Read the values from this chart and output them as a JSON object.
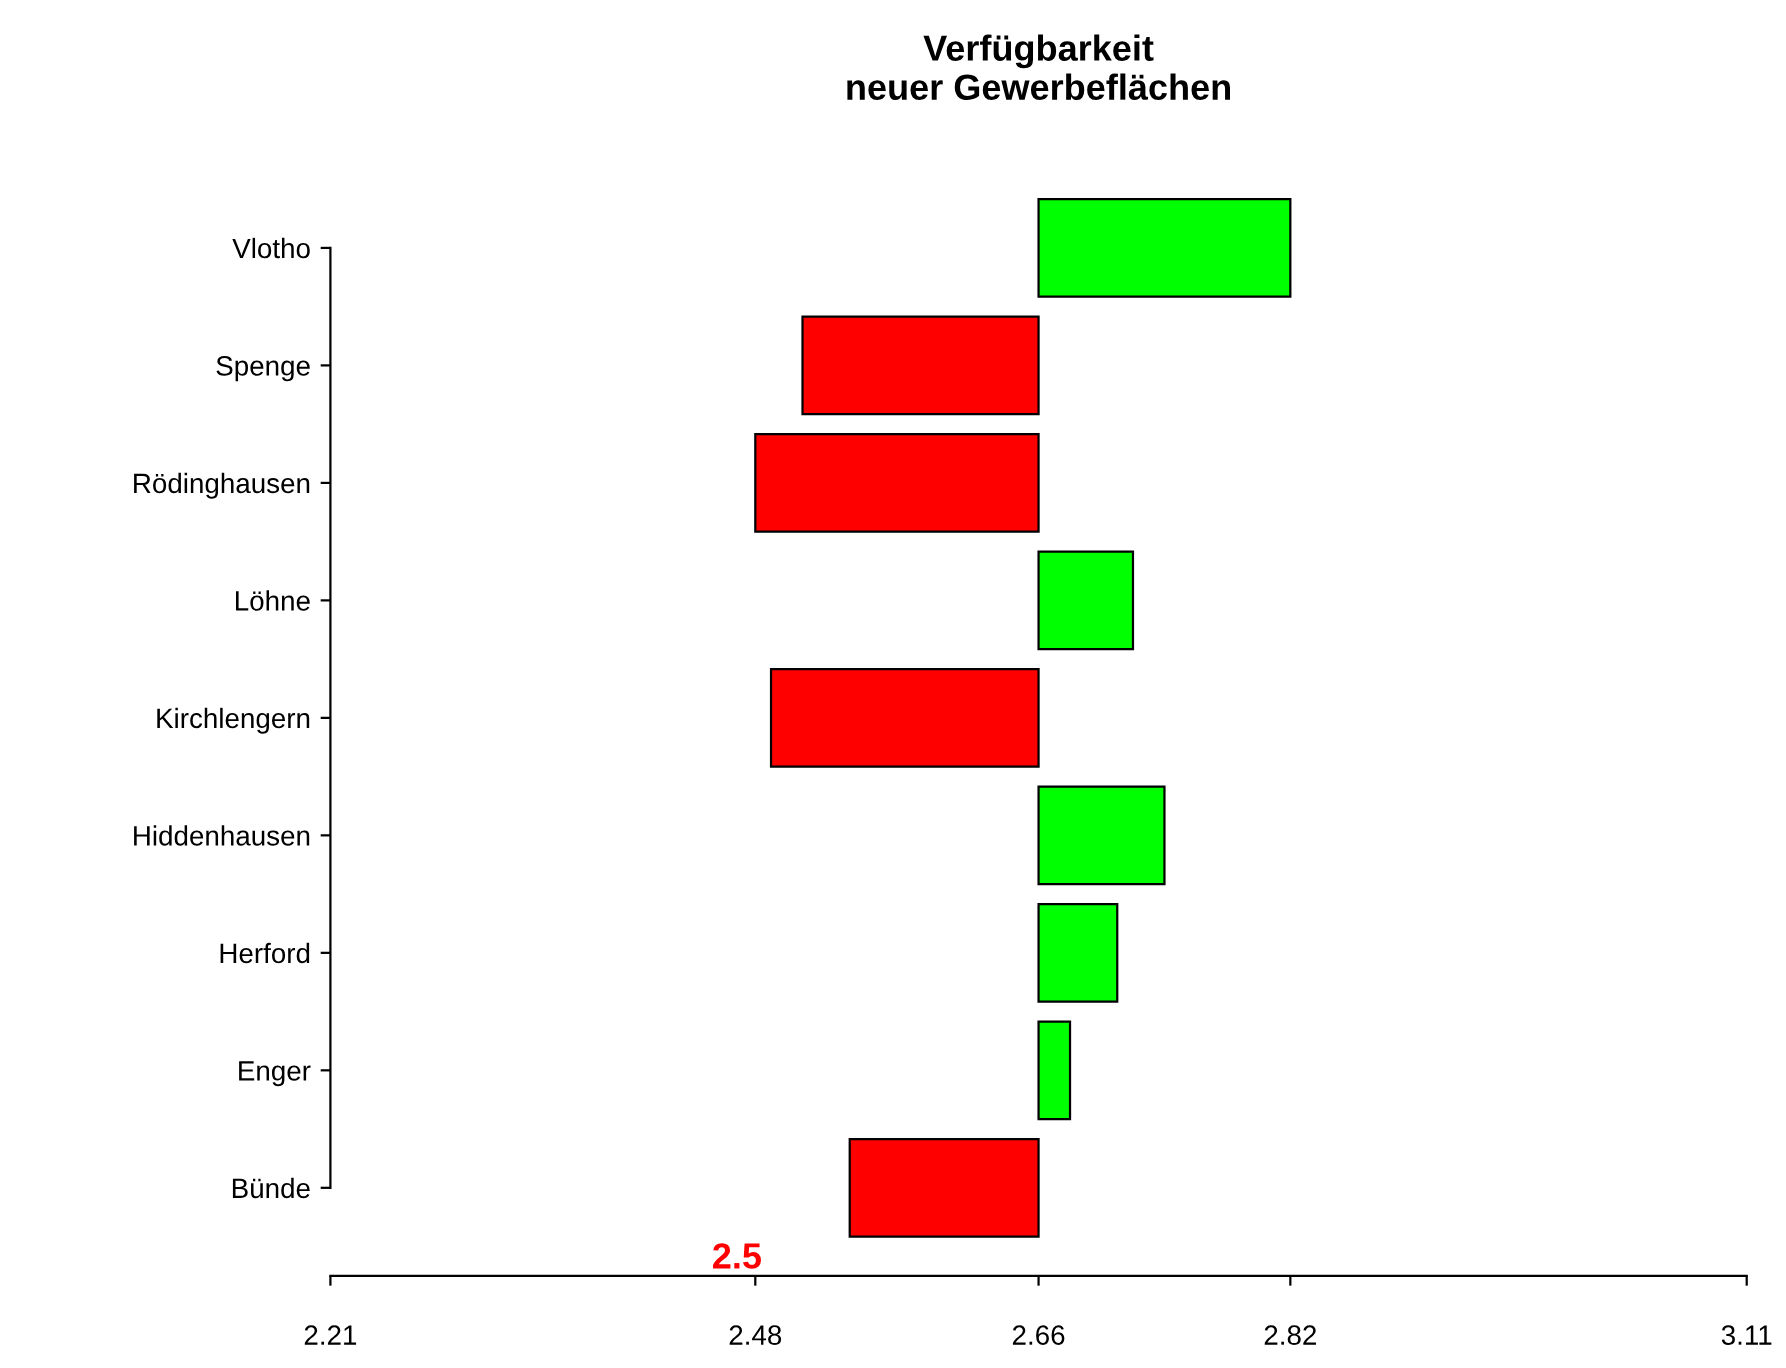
{
  "chart_data": {
    "type": "bar",
    "orientation": "horizontal",
    "title": "Verfügbarkeit\nneuer Gewerbeflächen",
    "categories": [
      "Vlotho",
      "Spenge",
      "Rödinghausen",
      "Löhne",
      "Kirchlengern",
      "Hiddenhausen",
      "Herford",
      "Enger",
      "Bünde"
    ],
    "base": [
      2.66,
      2.66,
      2.66,
      2.66,
      2.66,
      2.66,
      2.66,
      2.66,
      2.66
    ],
    "values": [
      0.16,
      -0.15,
      -0.18,
      0.06,
      -0.17,
      0.08,
      0.05,
      0.02,
      -0.12
    ],
    "colors": [
      "#00ff00",
      "#ff0000",
      "#ff0000",
      "#00ff00",
      "#ff0000",
      "#00ff00",
      "#00ff00",
      "#00ff00",
      "#ff0000"
    ],
    "xlim": [
      2.21,
      3.11
    ],
    "xticks": [
      2.21,
      2.48,
      2.66,
      2.82,
      3.11
    ],
    "annotations": [
      "2.5"
    ],
    "grid": false,
    "legend": false
  }
}
